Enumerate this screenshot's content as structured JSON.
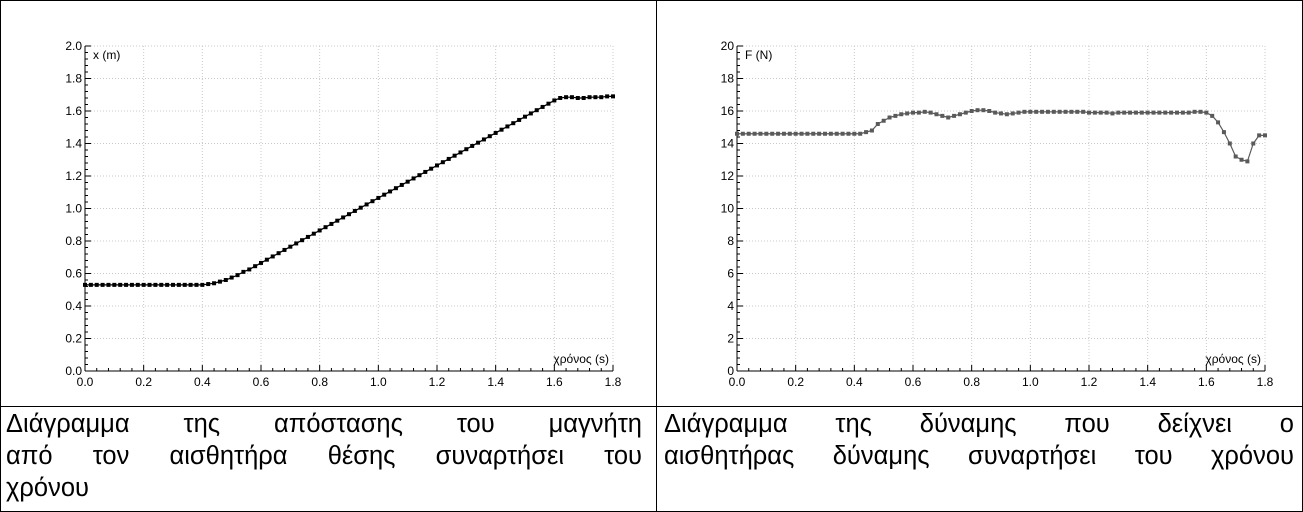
{
  "chart_data": [
    {
      "type": "line",
      "title": "",
      "ylabel": "x (m)",
      "xlabel": "χρόνος (s)",
      "xlim": [
        0,
        1.8
      ],
      "ylim": [
        0,
        2.0
      ],
      "xticks": [
        "0.0",
        "0.2",
        "0.4",
        "0.6",
        "0.8",
        "1.0",
        "1.2",
        "1.4",
        "1.6",
        "1.8"
      ],
      "yticks": [
        "0.0",
        "0.2",
        "0.4",
        "0.6",
        "0.8",
        "1.0",
        "1.2",
        "1.4",
        "1.6",
        "1.8",
        "2.0"
      ],
      "grid": true,
      "color": "#000000",
      "series": [
        {
          "x": [
            0.0,
            0.02,
            0.04,
            0.06,
            0.08,
            0.1,
            0.12,
            0.14,
            0.16,
            0.18,
            0.2,
            0.22,
            0.24,
            0.26,
            0.28,
            0.3,
            0.32,
            0.34,
            0.36,
            0.38,
            0.4,
            0.42,
            0.44,
            0.46,
            0.48,
            0.5,
            0.52,
            0.54,
            0.56,
            0.58,
            0.6,
            0.62,
            0.64,
            0.66,
            0.68,
            0.7,
            0.72,
            0.74,
            0.76,
            0.78,
            0.8,
            0.82,
            0.84,
            0.86,
            0.88,
            0.9,
            0.92,
            0.94,
            0.96,
            0.98,
            1.0,
            1.02,
            1.04,
            1.06,
            1.08,
            1.1,
            1.12,
            1.14,
            1.16,
            1.18,
            1.2,
            1.22,
            1.24,
            1.26,
            1.28,
            1.3,
            1.32,
            1.34,
            1.36,
            1.38,
            1.4,
            1.42,
            1.44,
            1.46,
            1.48,
            1.5,
            1.52,
            1.54,
            1.56,
            1.58,
            1.6,
            1.62,
            1.64,
            1.66,
            1.68,
            1.7,
            1.72,
            1.74,
            1.76,
            1.78,
            1.8
          ],
          "y": [
            0.53,
            0.53,
            0.53,
            0.53,
            0.53,
            0.53,
            0.53,
            0.53,
            0.53,
            0.53,
            0.53,
            0.53,
            0.53,
            0.53,
            0.53,
            0.53,
            0.53,
            0.53,
            0.53,
            0.53,
            0.53,
            0.535,
            0.54,
            0.55,
            0.56,
            0.575,
            0.59,
            0.61,
            0.625,
            0.645,
            0.665,
            0.685,
            0.705,
            0.725,
            0.745,
            0.765,
            0.785,
            0.805,
            0.825,
            0.845,
            0.865,
            0.885,
            0.905,
            0.925,
            0.945,
            0.965,
            0.985,
            1.005,
            1.025,
            1.045,
            1.065,
            1.085,
            1.105,
            1.125,
            1.145,
            1.165,
            1.185,
            1.205,
            1.225,
            1.245,
            1.265,
            1.285,
            1.305,
            1.325,
            1.345,
            1.365,
            1.385,
            1.405,
            1.425,
            1.445,
            1.465,
            1.485,
            1.505,
            1.525,
            1.545,
            1.565,
            1.585,
            1.605,
            1.625,
            1.645,
            1.665,
            1.68,
            1.685,
            1.685,
            1.68,
            1.68,
            1.685,
            1.685,
            1.685,
            1.69,
            1.69
          ]
        }
      ]
    },
    {
      "type": "line",
      "title": "",
      "ylabel": "F (N)",
      "xlabel": "χρόνος (s)",
      "xlim": [
        0,
        1.8
      ],
      "ylim": [
        0,
        20
      ],
      "xticks": [
        "0.0",
        "0.2",
        "0.4",
        "0.6",
        "0.8",
        "1.0",
        "1.2",
        "1.4",
        "1.6",
        "1.8"
      ],
      "yticks": [
        "0",
        "2",
        "4",
        "6",
        "8",
        "10",
        "12",
        "14",
        "16",
        "18",
        "20"
      ],
      "grid": true,
      "color": "#5a5a5a",
      "series": [
        {
          "x": [
            0.0,
            0.02,
            0.04,
            0.06,
            0.08,
            0.1,
            0.12,
            0.14,
            0.16,
            0.18,
            0.2,
            0.22,
            0.24,
            0.26,
            0.28,
            0.3,
            0.32,
            0.34,
            0.36,
            0.38,
            0.4,
            0.42,
            0.44,
            0.46,
            0.48,
            0.5,
            0.52,
            0.54,
            0.56,
            0.58,
            0.6,
            0.62,
            0.64,
            0.66,
            0.68,
            0.7,
            0.72,
            0.74,
            0.76,
            0.78,
            0.8,
            0.82,
            0.84,
            0.86,
            0.88,
            0.9,
            0.92,
            0.94,
            0.96,
            0.98,
            1.0,
            1.02,
            1.04,
            1.06,
            1.08,
            1.1,
            1.12,
            1.14,
            1.16,
            1.18,
            1.2,
            1.22,
            1.24,
            1.26,
            1.28,
            1.3,
            1.32,
            1.34,
            1.36,
            1.38,
            1.4,
            1.42,
            1.44,
            1.46,
            1.48,
            1.5,
            1.52,
            1.54,
            1.56,
            1.58,
            1.6,
            1.62,
            1.64,
            1.66,
            1.68,
            1.7,
            1.72,
            1.74,
            1.76,
            1.78,
            1.8
          ],
          "y": [
            14.6,
            14.6,
            14.6,
            14.6,
            14.6,
            14.6,
            14.6,
            14.6,
            14.6,
            14.6,
            14.6,
            14.6,
            14.6,
            14.6,
            14.6,
            14.6,
            14.6,
            14.6,
            14.6,
            14.6,
            14.6,
            14.6,
            14.7,
            14.8,
            15.2,
            15.4,
            15.6,
            15.7,
            15.8,
            15.85,
            15.9,
            15.9,
            15.95,
            15.9,
            15.8,
            15.7,
            15.6,
            15.7,
            15.8,
            15.9,
            16.0,
            16.05,
            16.05,
            16.0,
            15.9,
            15.85,
            15.8,
            15.85,
            15.9,
            15.95,
            15.95,
            15.95,
            15.95,
            15.95,
            15.95,
            15.95,
            15.95,
            15.95,
            15.95,
            15.95,
            15.9,
            15.9,
            15.9,
            15.9,
            15.85,
            15.9,
            15.9,
            15.9,
            15.9,
            15.9,
            15.9,
            15.9,
            15.9,
            15.9,
            15.9,
            15.9,
            15.9,
            15.9,
            15.95,
            15.95,
            15.9,
            15.7,
            15.3,
            14.7,
            14.0,
            13.2,
            13.0,
            12.9,
            14.0,
            14.5,
            14.5
          ]
        }
      ]
    }
  ],
  "captions": {
    "left": [
      "Διάγραμμα της απόστασης του μαγνήτη",
      "από τον αισθητήρα θέσης συναρτήσει του",
      "χρόνου"
    ],
    "right": [
      "Διάγραμμα της δύναμης που δείχνει ο",
      "αισθητήρας δύναμης συναρτήσει του χρόνου"
    ]
  }
}
